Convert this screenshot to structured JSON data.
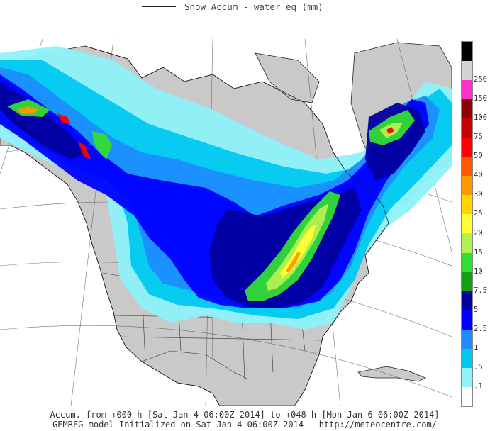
{
  "legend": {
    "title": "Snow Accum - water eq (mm)"
  },
  "colorbar": {
    "levels": [
      {
        "label": "",
        "color": "#000000"
      },
      {
        "label": "250",
        "color": "#d4d4d4"
      },
      {
        "label": "150",
        "color": "#ff33cc"
      },
      {
        "label": "100",
        "color": "#8b0000"
      },
      {
        "label": "75",
        "color": "#c40000"
      },
      {
        "label": "50",
        "color": "#ff0000"
      },
      {
        "label": "40",
        "color": "#ff5a00"
      },
      {
        "label": "30",
        "color": "#ff9a00"
      },
      {
        "label": "25",
        "color": "#ffd400"
      },
      {
        "label": "20",
        "color": "#ffff33"
      },
      {
        "label": "15",
        "color": "#b4f050"
      },
      {
        "label": "10",
        "color": "#33dd33"
      },
      {
        "label": "7.5",
        "color": "#11a011"
      },
      {
        "label": "5",
        "color": "#0000a0"
      },
      {
        "label": "2.5",
        "color": "#0000ff"
      },
      {
        "label": "1",
        "color": "#1c8cff"
      },
      {
        "label": ".5",
        "color": "#00c8f0"
      },
      {
        "label": ".1",
        "color": "#8ef2f8"
      },
      {
        "label": "",
        "color": "#ffffff"
      }
    ]
  },
  "footer": {
    "line1": "Accum. from +000-h [Sat Jan 4 06:00Z 2014] to +048-h [Mon Jan 6 06:00Z 2014]",
    "line2": "GEMREG model Initialized on Sat Jan 4 06:00Z 2014 - http://meteocentre.com/"
  },
  "colors": {
    "ocean": "#ffffff",
    "land": "#c9c9c9",
    "lightblue": "#8ef2f8",
    "cyan": "#00c8f0",
    "midblue": "#1c8cff",
    "blue": "#0000ff",
    "darkblue": "#0000a0",
    "green": "#11a011",
    "brightgreen": "#33dd33",
    "lime": "#b4f050",
    "yellow": "#ffff33",
    "orange": "#ff9a00",
    "red": "#ff0000"
  }
}
